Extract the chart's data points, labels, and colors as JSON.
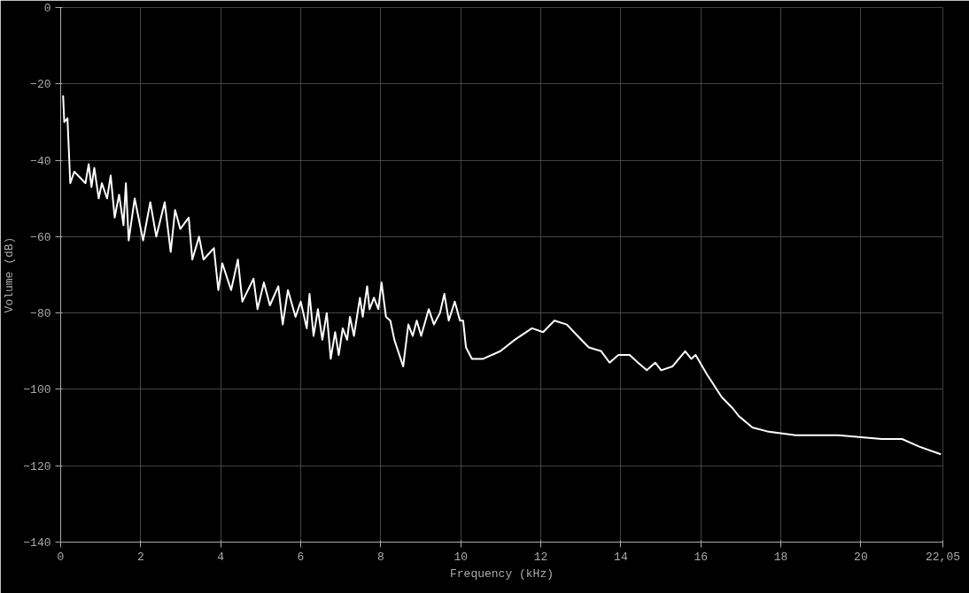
{
  "chart_data": {
    "type": "line",
    "xlabel": "Frequency (kHz)",
    "ylabel": "Volume (dB)",
    "x": [
      0.06,
      0.09,
      0.17,
      0.24,
      0.34,
      0.62,
      0.7,
      0.77,
      0.84,
      0.95,
      1.03,
      1.16,
      1.25,
      1.35,
      1.46,
      1.57,
      1.63,
      1.7,
      1.85,
      2.06,
      2.24,
      2.39,
      2.6,
      2.75,
      2.86,
      2.99,
      3.2,
      3.29,
      3.46,
      3.57,
      3.83,
      3.94,
      4.04,
      4.26,
      4.43,
      4.54,
      4.82,
      4.92,
      5.08,
      5.23,
      5.44,
      5.55,
      5.68,
      5.87,
      6.0,
      6.15,
      6.22,
      6.32,
      6.43,
      6.54,
      6.65,
      6.75,
      6.86,
      6.95,
      7.05,
      7.16,
      7.23,
      7.33,
      7.48,
      7.55,
      7.66,
      7.72,
      7.83,
      7.94,
      8.02,
      8.13,
      8.24,
      8.34,
      8.56,
      8.69,
      8.8,
      8.9,
      9.01,
      9.2,
      9.33,
      9.48,
      9.59,
      9.7,
      9.85,
      9.98,
      10.06,
      10.13,
      10.28,
      10.56,
      10.99,
      11.35,
      11.78,
      12.06,
      12.34,
      12.65,
      12.92,
      13.2,
      13.51,
      13.72,
      13.94,
      14.22,
      14.43,
      14.65,
      14.86,
      15.01,
      15.29,
      15.61,
      15.76,
      15.87,
      16.15,
      16.52,
      16.8,
      16.95,
      17.29,
      17.66,
      18.37,
      19.44,
      20.52,
      21.03,
      21.46,
      22.0
    ],
    "series": [
      {
        "color": "#ffffff",
        "values": [
          -23,
          -30,
          -29,
          -46,
          -43,
          -46,
          -41,
          -47,
          -42,
          -50,
          -46,
          -50,
          -44,
          -55,
          -49,
          -57,
          -46,
          -61,
          -50,
          -61,
          -51,
          -60,
          -51,
          -64,
          -53,
          -58,
          -55,
          -66,
          -60,
          -66,
          -63,
          -74,
          -67,
          -74,
          -66,
          -77,
          -71,
          -79,
          -72,
          -78,
          -73,
          -83,
          -74,
          -81,
          -77,
          -84,
          -75,
          -86,
          -79,
          -87,
          -80,
          -92,
          -85,
          -91,
          -84,
          -87,
          -81,
          -86,
          -76,
          -81,
          -73,
          -79,
          -76,
          -79,
          -72,
          -81,
          -82,
          -87,
          -94,
          -83,
          -86,
          -82,
          -86,
          -79,
          -83,
          -80,
          -75,
          -82,
          -77,
          -82,
          -82,
          -89,
          -92,
          -92,
          -90,
          -87,
          -84,
          -85,
          -82,
          -83,
          -86,
          -89,
          -90,
          -93,
          -91,
          -91,
          -93,
          -95,
          -93,
          -95,
          -94,
          -90,
          -92,
          -91,
          -96,
          -102,
          -105,
          -107,
          -110,
          -111,
          -112,
          -112,
          -113,
          -113,
          -115,
          -117
        ]
      }
    ],
    "xlim": [
      0,
      22.05
    ],
    "xticks": [
      0,
      2,
      4,
      6,
      8,
      10,
      12,
      14,
      16,
      18,
      20,
      {
        "value": 22.05,
        "label": "22,05"
      }
    ],
    "ylim": [
      -140,
      0
    ],
    "yticks": [
      0,
      -20,
      -40,
      -60,
      -80,
      -100,
      -120,
      -140
    ],
    "grid": true,
    "marker": "none",
    "line_style": "solid"
  }
}
